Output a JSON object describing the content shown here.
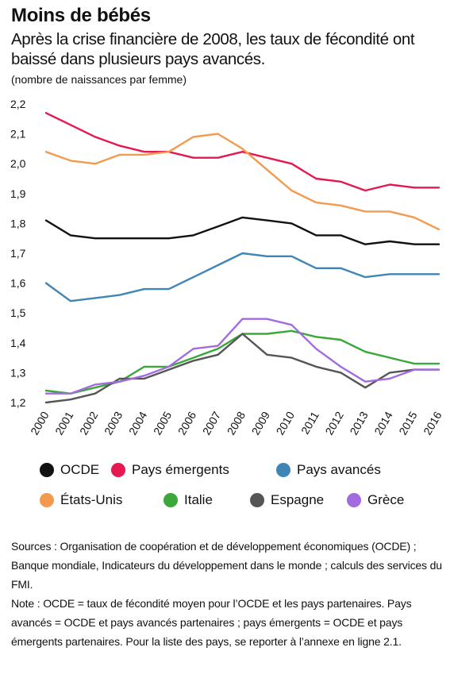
{
  "title": "Moins de bébés",
  "subtitle": "Après la crise financière de 2008, les taux de fécondité ont baissé dans plusieurs pays avancés.",
  "unit_label": "(nombre de naissances par femme)",
  "chart_data": {
    "type": "line",
    "x": [
      "2000",
      "2001",
      "2002",
      "2003",
      "2004",
      "2005",
      "2006",
      "2007",
      "2008",
      "2009",
      "2010",
      "2011",
      "2012",
      "2013",
      "2014",
      "2015",
      "2016"
    ],
    "ylim": [
      1.2,
      2.2
    ],
    "yticks": [
      "1,2",
      "1,3",
      "1,4",
      "1,5",
      "1,6",
      "1,7",
      "1,8",
      "1,9",
      "2,0",
      "2,1",
      "2,2"
    ],
    "grid": false,
    "legend_position": "bottom",
    "series": [
      {
        "name": "Pays émergents",
        "color": "#e5194f",
        "values": [
          2.17,
          2.13,
          2.09,
          2.06,
          2.04,
          2.04,
          2.02,
          2.02,
          2.04,
          2.02,
          2.0,
          1.95,
          1.94,
          1.91,
          1.93,
          1.92,
          1.92
        ]
      },
      {
        "name": "États-Unis",
        "color": "#f39a4f",
        "values": [
          2.04,
          2.01,
          2.0,
          2.03,
          2.03,
          2.04,
          2.09,
          2.1,
          2.05,
          1.98,
          1.91,
          1.87,
          1.86,
          1.84,
          1.84,
          1.82,
          1.78
        ]
      },
      {
        "name": "OCDE",
        "color": "#111111",
        "values": [
          1.81,
          1.76,
          1.75,
          1.75,
          1.75,
          1.75,
          1.76,
          1.79,
          1.82,
          1.81,
          1.8,
          1.76,
          1.76,
          1.73,
          1.74,
          1.73,
          1.73
        ]
      },
      {
        "name": "Pays avancés",
        "color": "#3f85b5",
        "values": [
          1.6,
          1.54,
          1.55,
          1.56,
          1.58,
          1.58,
          1.62,
          1.66,
          1.7,
          1.69,
          1.69,
          1.65,
          1.65,
          1.62,
          1.63,
          1.63,
          1.63
        ]
      },
      {
        "name": "Italie",
        "color": "#3aa83a",
        "values": [
          1.24,
          1.23,
          1.25,
          1.27,
          1.32,
          1.32,
          1.35,
          1.38,
          1.43,
          1.43,
          1.44,
          1.42,
          1.41,
          1.37,
          1.35,
          1.33,
          1.33
        ]
      },
      {
        "name": "Espagne",
        "color": "#555555",
        "values": [
          1.2,
          1.21,
          1.23,
          1.28,
          1.28,
          1.31,
          1.34,
          1.36,
          1.43,
          1.36,
          1.35,
          1.32,
          1.3,
          1.25,
          1.3,
          1.31,
          1.31
        ]
      },
      {
        "name": "Grèce",
        "color": "#a36be0",
        "values": [
          1.23,
          1.23,
          1.26,
          1.27,
          1.29,
          1.32,
          1.38,
          1.39,
          1.48,
          1.48,
          1.46,
          1.38,
          1.32,
          1.27,
          1.28,
          1.31,
          1.31
        ]
      }
    ]
  },
  "legend": [
    {
      "label": "OCDE",
      "color": "#111111"
    },
    {
      "label": "Pays émergents",
      "color": "#e5194f"
    },
    {
      "label": "Pays avancés",
      "color": "#3f85b5"
    },
    {
      "label": "États-Unis",
      "color": "#f39a4f"
    },
    {
      "label": "Italie",
      "color": "#3aa83a"
    },
    {
      "label": "Espagne",
      "color": "#555555"
    },
    {
      "label": "Grèce",
      "color": "#a36be0"
    }
  ],
  "notes": [
    "Sources : Organisation de coopération et de développement économiques (OCDE) ; Banque mondiale, Indicateurs du développement dans le monde ; calculs des services du FMI.",
    "Note : OCDE = taux de fécondité moyen pour l’OCDE et les pays partenaires. Pays avancés = OCDE et pays avancés partenaires ; pays émergents = OCDE et pays émergents partenaires. Pour la liste des pays, se reporter à l’annexe en ligne 2.1."
  ]
}
